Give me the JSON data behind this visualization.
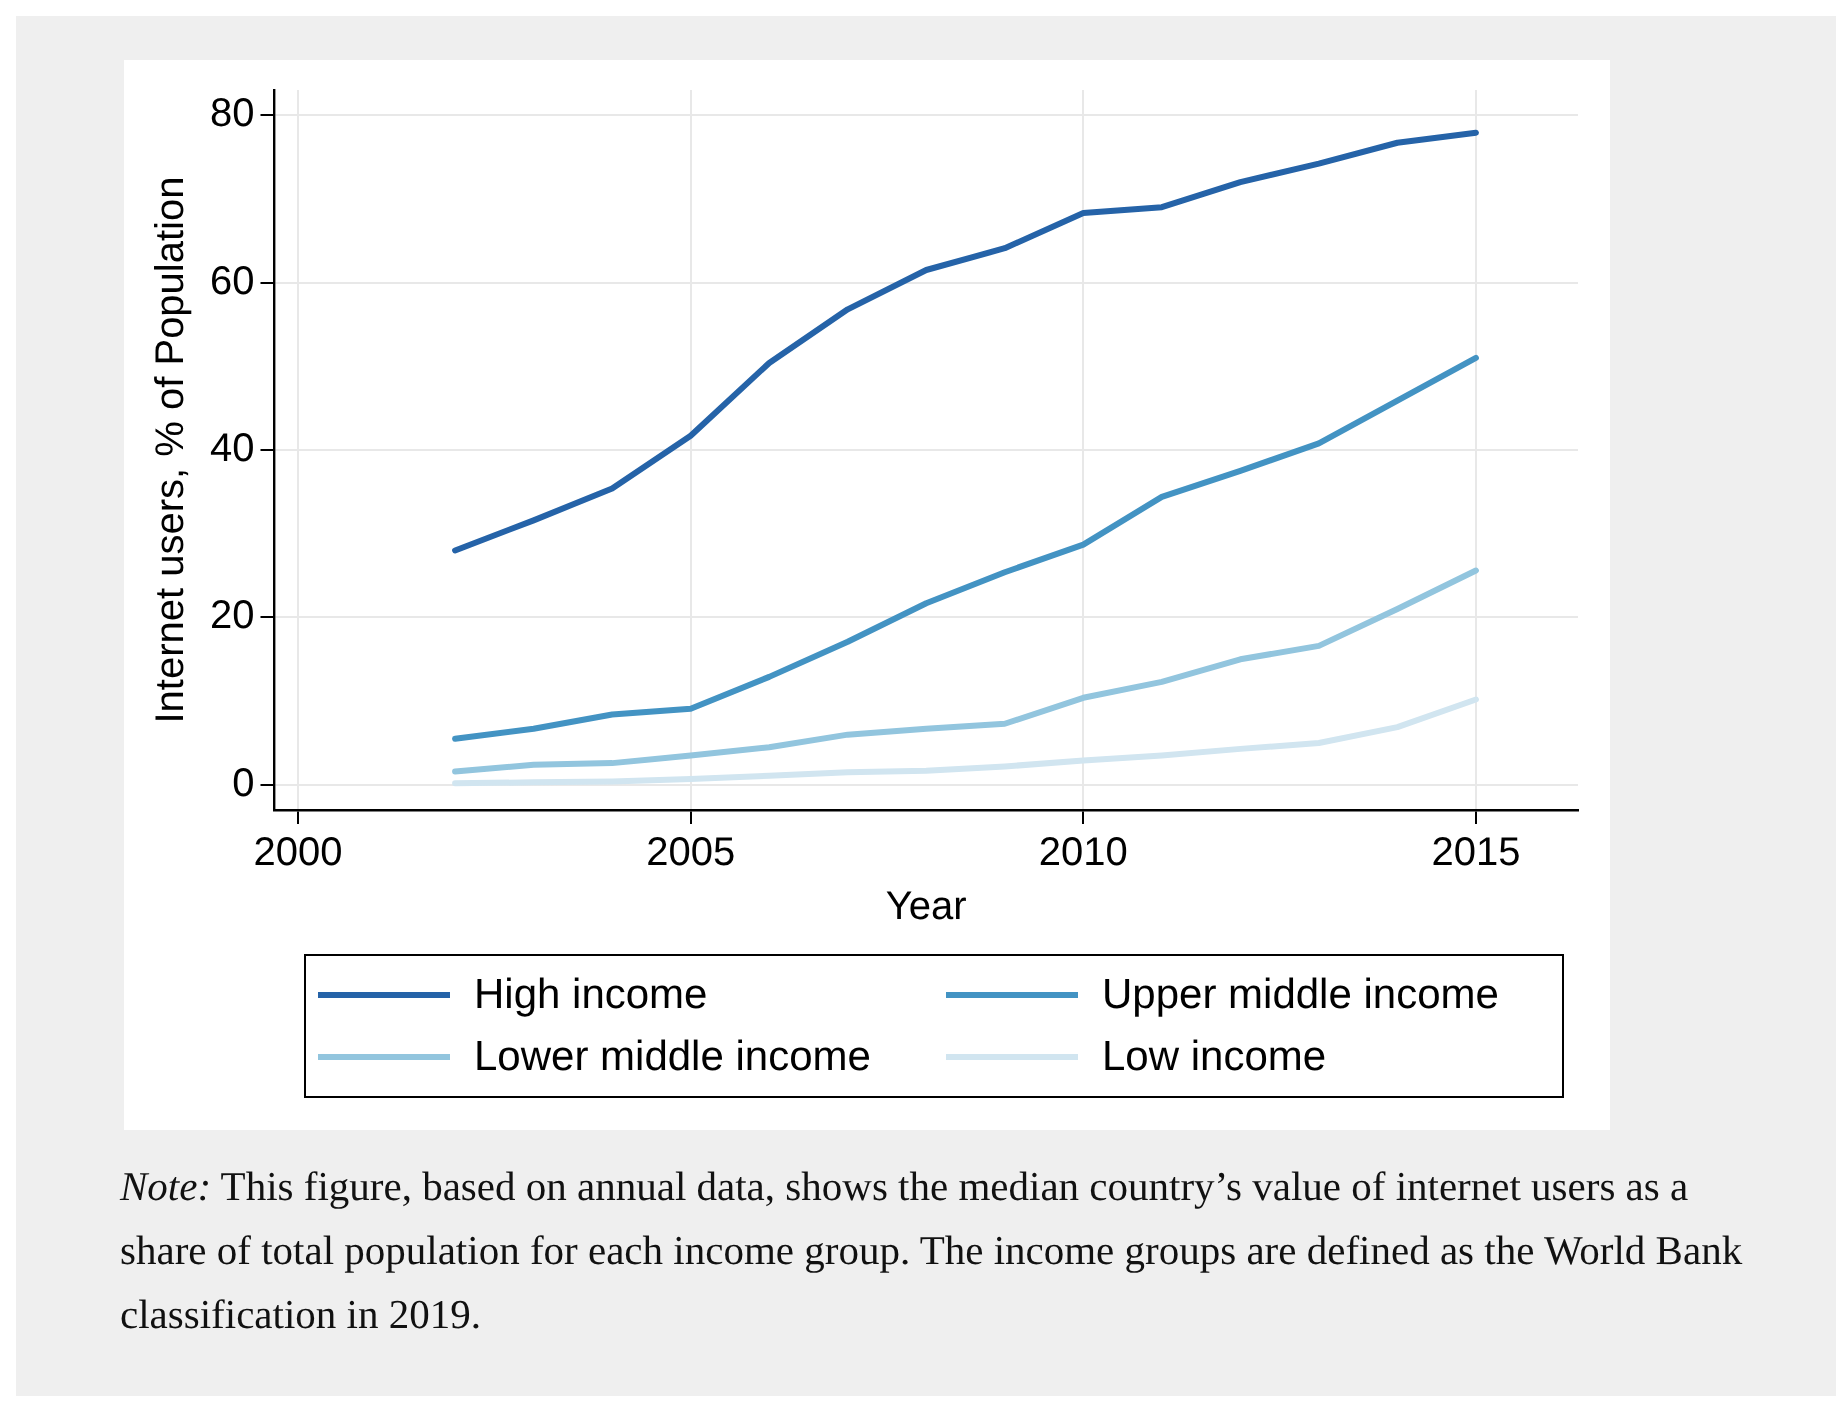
{
  "chart_data": {
    "type": "line",
    "xlabel": "Year",
    "ylabel": "Internet users, % of Population",
    "x": [
      2002,
      2003,
      2004,
      2005,
      2006,
      2007,
      2008,
      2009,
      2010,
      2011,
      2012,
      2013,
      2014,
      2015
    ],
    "series": [
      {
        "name": "High income",
        "color": "#2563a8",
        "values": [
          28.0,
          31.6,
          35.4,
          41.7,
          50.4,
          56.8,
          61.5,
          64.1,
          68.3,
          69.0,
          72.0,
          74.2,
          76.7,
          77.9
        ]
      },
      {
        "name": "Upper middle income",
        "color": "#4393c3",
        "values": [
          5.5,
          6.7,
          8.4,
          9.1,
          12.9,
          17.1,
          21.7,
          25.4,
          28.7,
          34.4,
          37.5,
          40.8,
          45.9,
          51.0
        ]
      },
      {
        "name": "Lower middle income",
        "color": "#92c5de",
        "values": [
          1.6,
          2.4,
          2.6,
          3.5,
          4.5,
          6.0,
          6.7,
          7.3,
          10.4,
          12.3,
          15.0,
          16.6,
          21.0,
          25.6
        ]
      },
      {
        "name": "Low income",
        "color": "#d1e5f0",
        "values": [
          0.2,
          0.3,
          0.4,
          0.7,
          1.1,
          1.5,
          1.7,
          2.2,
          2.9,
          3.5,
          4.3,
          5.0,
          6.9,
          10.2
        ]
      }
    ],
    "xlim": [
      1999.7,
      2016.3
    ],
    "xticks": [
      2000,
      2005,
      2010,
      2015
    ],
    "ylim": [
      -3,
      83
    ],
    "yticks": [
      0,
      20,
      40,
      60,
      80
    ],
    "grid": true,
    "legend": "bottom",
    "marker": "none",
    "line_style": "solid",
    "annotations": [
      "Note: This figure, based on annual data, shows the median country’s value of internet users as a share of total population for each income group. The income groups are defined as the World Bank classification in 2019."
    ]
  }
}
